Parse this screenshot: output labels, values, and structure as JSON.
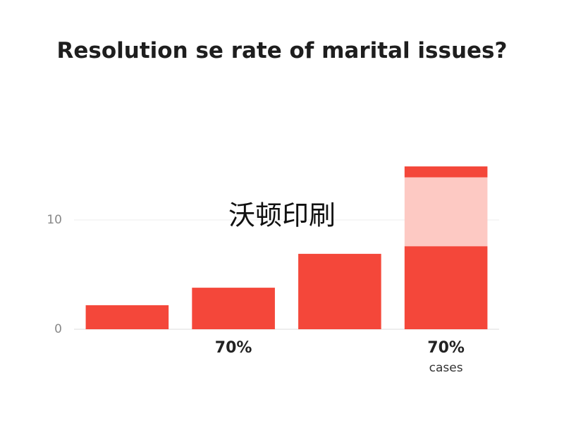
{
  "chart_data": {
    "type": "stacked_bar",
    "title": "Resolution se rate of marital issues?",
    "categories": [
      null,
      "70%",
      null,
      "70%"
    ],
    "series": [
      {
        "color": "#f4473a",
        "values": [
          2.2,
          3.8,
          6.9,
          7.6
        ]
      },
      {
        "color": "#fdc9c3",
        "values": [
          null,
          null,
          null,
          6.3
        ]
      },
      {
        "color": "#f4473a",
        "values": [
          null,
          null,
          null,
          1.0
        ]
      }
    ],
    "annotations": [
      "cases"
    ],
    "watermark": "沃顿印刷",
    "ylim": [
      0,
      15
    ],
    "yticks": [
      0,
      10
    ],
    "grid": true
  }
}
